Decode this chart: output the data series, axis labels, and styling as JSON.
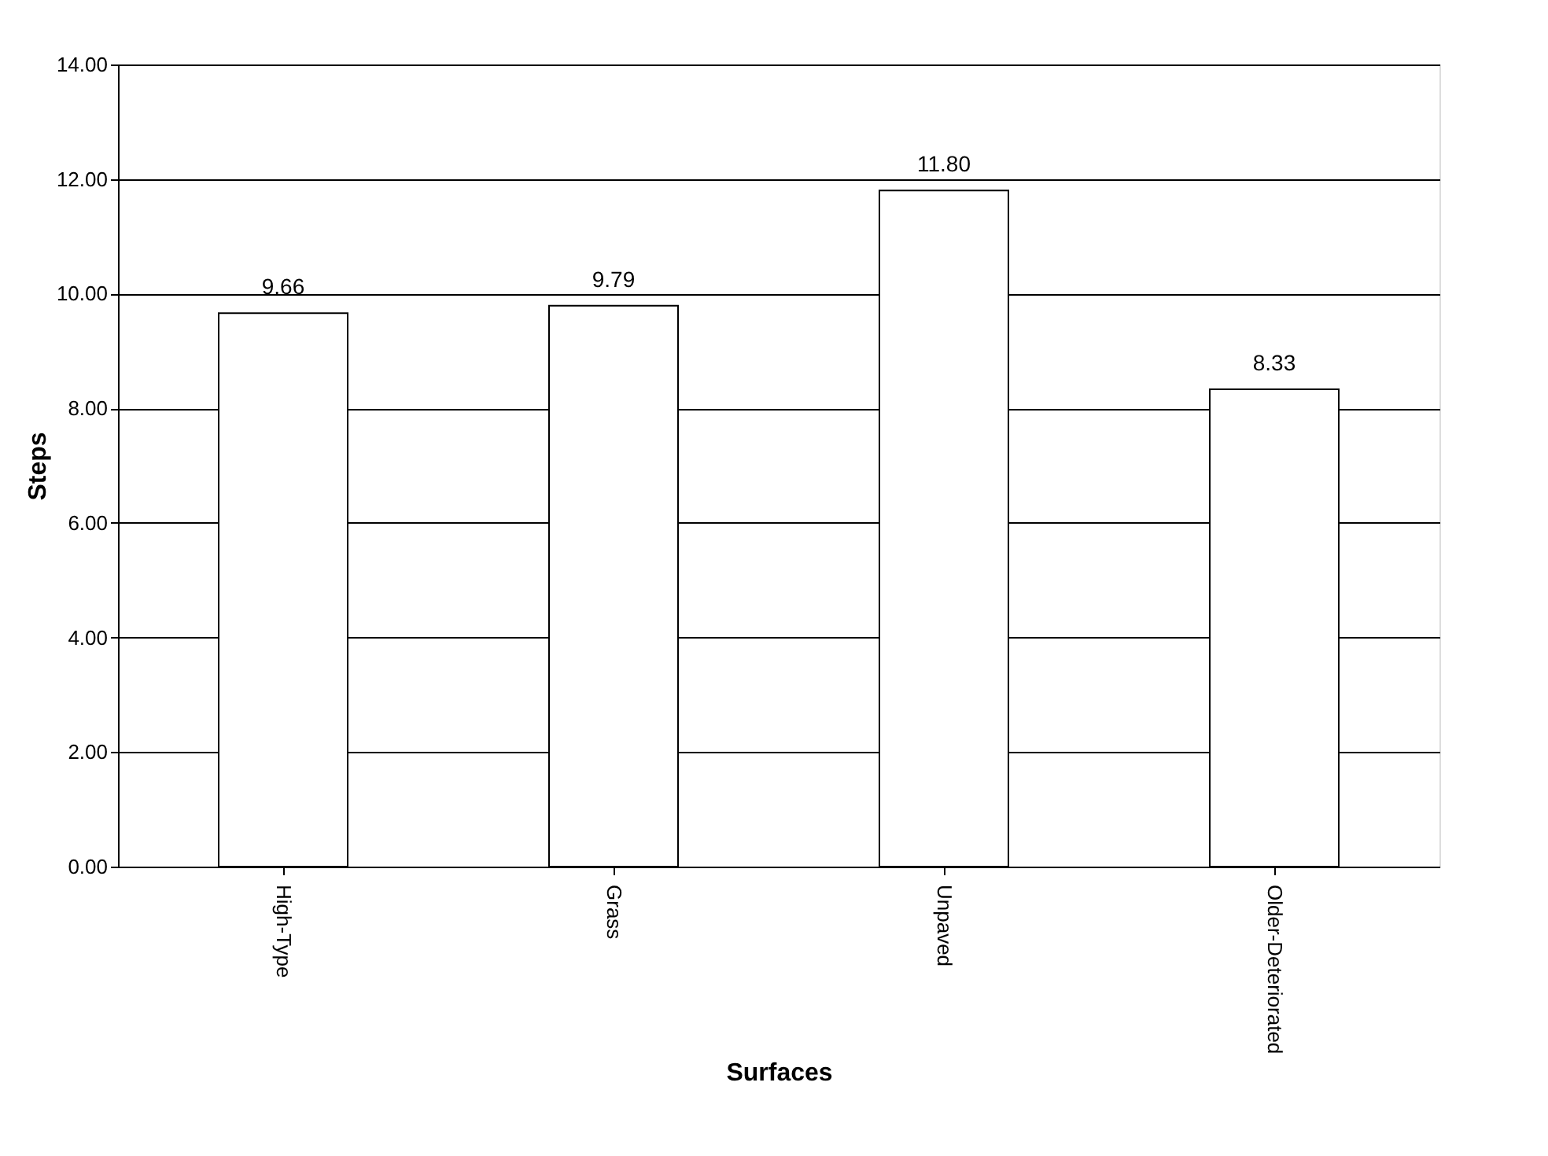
{
  "chart_data": {
    "type": "bar",
    "xlabel": "Surfaces",
    "ylabel": "Steps",
    "categories": [
      "High-Type",
      "Grass",
      "Unpaved",
      "Older-Deteriorated"
    ],
    "values": [
      9.66,
      9.79,
      11.8,
      8.33
    ],
    "value_labels": [
      "9.66",
      "9.79",
      "11.80",
      "8.33"
    ],
    "color": "#ffffff",
    "ylim": [
      0,
      14
    ],
    "yticks": [
      {
        "value": 0,
        "label": "0.00"
      },
      {
        "value": 2,
        "label": "2.00"
      },
      {
        "value": 4,
        "label": "4.00"
      },
      {
        "value": 6,
        "label": "6.00"
      },
      {
        "value": 8,
        "label": "8.00"
      },
      {
        "value": 10,
        "label": "10.00"
      },
      {
        "value": 12,
        "label": "12.00"
      },
      {
        "value": 14,
        "label": "14.00"
      }
    ],
    "grid": "y"
  }
}
